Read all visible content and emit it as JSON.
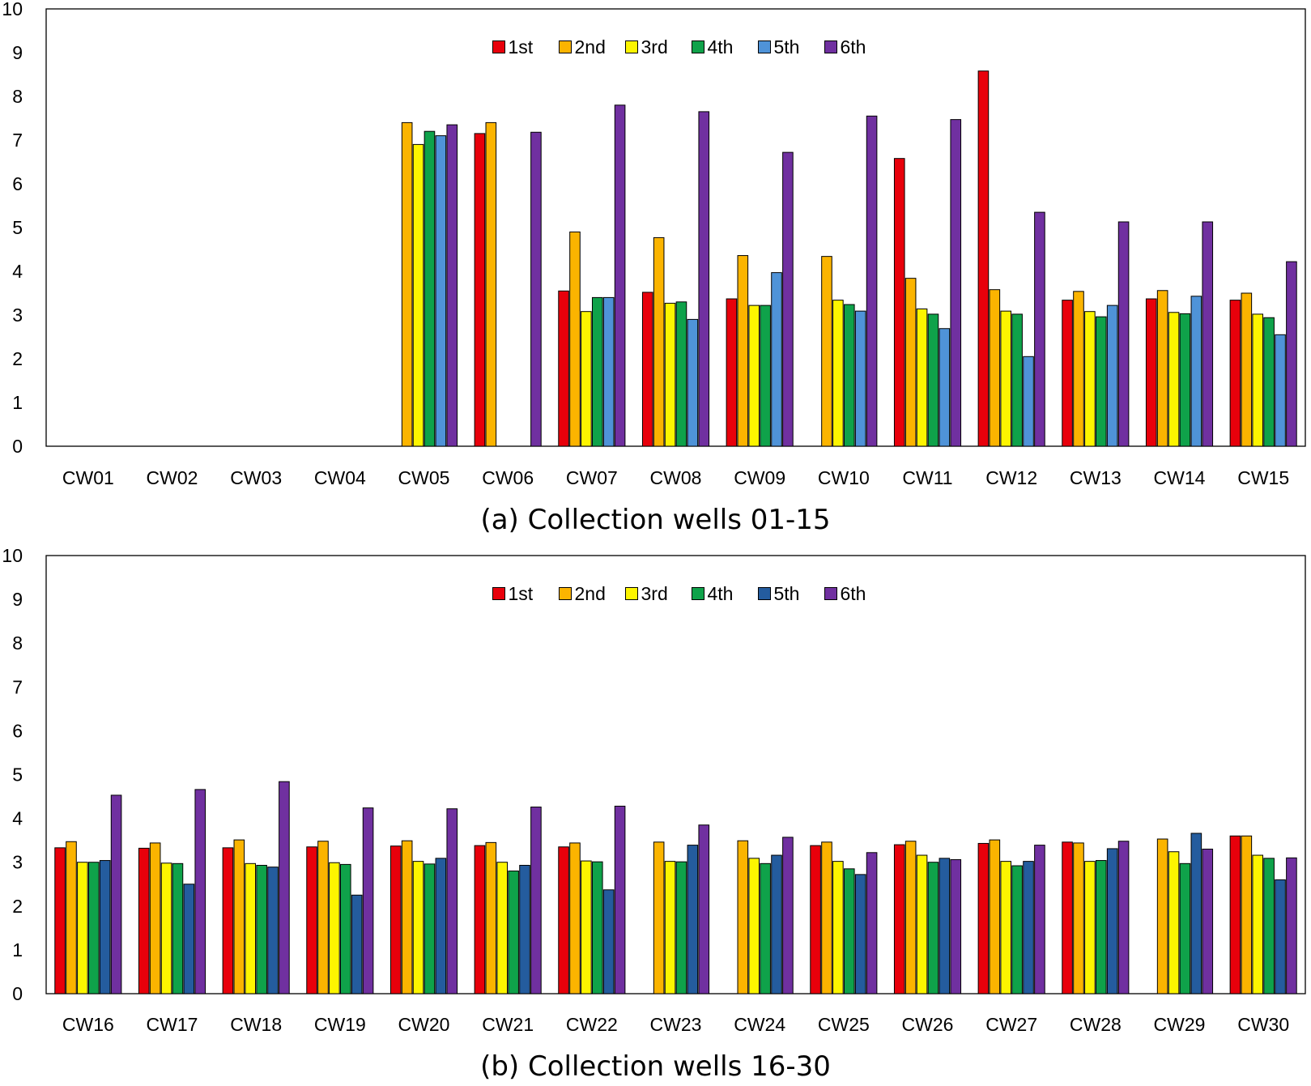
{
  "colors": {
    "1st": "#e8000b",
    "2nd": "#fbb400",
    "3rd": "#fdf500",
    "4th": "#0fa24a",
    "5th_a": "#4f93d8",
    "5th_b": "#245c9e",
    "6th": "#7030a0"
  },
  "chart_data": [
    {
      "type": "bar",
      "title": "(a) Collection wells 01-15",
      "xlabel": "",
      "ylabel": "",
      "ylim": [
        0,
        10
      ],
      "yticks": [
        "0",
        "1",
        "2",
        "3",
        "4",
        "5",
        "6",
        "7",
        "8",
        "9",
        "10"
      ],
      "legend_position": "top-center",
      "categories": [
        "CW01",
        "CW02",
        "CW03",
        "CW04",
        "CW05",
        "CW06",
        "CW07",
        "CW08",
        "CW09",
        "CW10",
        "CW11",
        "CW12",
        "CW13",
        "CW14",
        "CW15"
      ],
      "series": [
        {
          "name": "1st",
          "color": "#e8000b",
          "values": [
            null,
            null,
            null,
            null,
            null,
            7.15,
            3.55,
            3.52,
            3.37,
            null,
            6.58,
            8.58,
            3.34,
            3.37,
            3.34
          ]
        },
        {
          "name": "2nd",
          "color": "#fbb400",
          "values": [
            null,
            null,
            null,
            null,
            7.4,
            7.4,
            4.9,
            4.77,
            4.36,
            4.34,
            3.84,
            3.58,
            3.54,
            3.56,
            3.5
          ]
        },
        {
          "name": "3rd",
          "color": "#fdf500",
          "values": [
            null,
            null,
            null,
            null,
            6.9,
            null,
            3.08,
            3.27,
            3.22,
            3.34,
            3.14,
            3.09,
            3.08,
            3.06,
            3.02
          ]
        },
        {
          "name": "4th",
          "color": "#0fa24a",
          "values": [
            null,
            null,
            null,
            null,
            7.2,
            null,
            3.4,
            3.3,
            3.22,
            3.24,
            3.02,
            3.02,
            2.96,
            3.03,
            2.94
          ]
        },
        {
          "name": "5th",
          "color": "#4f93d8",
          "values": [
            null,
            null,
            null,
            null,
            7.1,
            null,
            3.4,
            2.9,
            3.97,
            3.09,
            2.69,
            2.05,
            3.22,
            3.43,
            2.55
          ]
        },
        {
          "name": "6th",
          "color": "#7030a0",
          "values": [
            null,
            null,
            null,
            null,
            7.35,
            7.18,
            7.8,
            7.65,
            6.72,
            7.55,
            7.47,
            5.35,
            5.13,
            5.13,
            4.22
          ]
        }
      ]
    },
    {
      "type": "bar",
      "title": "(b) Collection wells 16-30",
      "xlabel": "",
      "ylabel": "",
      "ylim": [
        0,
        10
      ],
      "yticks": [
        "0",
        "1",
        "2",
        "3",
        "4",
        "5",
        "6",
        "7",
        "8",
        "9",
        "10"
      ],
      "legend_position": "top-center",
      "categories": [
        "CW16",
        "CW17",
        "CW18",
        "CW19",
        "CW20",
        "CW21",
        "CW22",
        "CW23",
        "CW24",
        "CW25",
        "CW26",
        "CW27",
        "CW28",
        "CW29",
        "CW30"
      ],
      "series": [
        {
          "name": "1st",
          "color": "#e8000b",
          "values": [
            3.33,
            3.32,
            3.33,
            3.35,
            3.37,
            3.38,
            3.35,
            null,
            null,
            3.38,
            3.4,
            3.43,
            3.46,
            null,
            3.6
          ]
        },
        {
          "name": "2nd",
          "color": "#fbb400",
          "values": [
            3.47,
            3.44,
            3.51,
            3.48,
            3.49,
            3.45,
            3.44,
            3.46,
            3.49,
            3.46,
            3.48,
            3.51,
            3.44,
            3.53,
            3.6
          ]
        },
        {
          "name": "3rd",
          "color": "#fdf500",
          "values": [
            3.0,
            2.98,
            2.97,
            2.99,
            3.02,
            3.0,
            3.03,
            3.02,
            3.09,
            3.02,
            3.16,
            3.02,
            3.02,
            3.24,
            3.16
          ]
        },
        {
          "name": "4th",
          "color": "#0fa24a",
          "values": [
            3.0,
            2.97,
            2.93,
            2.95,
            2.96,
            2.8,
            3.01,
            3.01,
            2.97,
            2.85,
            3.0,
            2.92,
            3.04,
            2.97,
            3.09
          ]
        },
        {
          "name": "5th",
          "color": "#245c9e",
          "values": [
            3.04,
            2.5,
            2.89,
            2.25,
            3.09,
            2.93,
            2.37,
            3.39,
            3.16,
            2.72,
            3.09,
            3.02,
            3.31,
            3.66,
            2.6
          ]
        },
        {
          "name": "6th",
          "color": "#7030a0",
          "values": [
            4.53,
            4.66,
            4.84,
            4.24,
            4.22,
            4.26,
            4.28,
            3.85,
            3.57,
            3.22,
            3.06,
            3.39,
            3.48,
            3.3,
            3.1
          ]
        }
      ]
    }
  ]
}
